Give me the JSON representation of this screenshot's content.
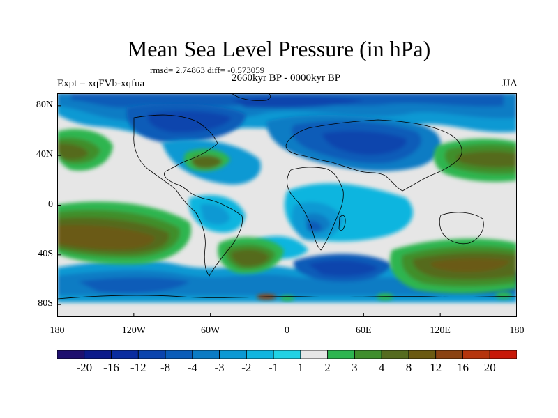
{
  "header": {
    "title": "Mean Sea Level Pressure (in hPa)",
    "stats": "rmsd= 2.74863  diff= -0.573059",
    "subtitle": "2660kyr BP - 0000kyr BP",
    "experiment": "Expt = xqFVb-xqfua",
    "season": "JJA"
  },
  "chart_data": {
    "type": "heatmap",
    "title": "Mean Sea Level Pressure (in hPa)",
    "xlabel": "",
    "ylabel": "",
    "xlim": [
      -180,
      180
    ],
    "ylim": [
      -90,
      90
    ],
    "x_ticks": [
      {
        "value": -180,
        "label": "180"
      },
      {
        "value": -120,
        "label": "120W"
      },
      {
        "value": -60,
        "label": "60W"
      },
      {
        "value": 0,
        "label": "0"
      },
      {
        "value": 60,
        "label": "60E"
      },
      {
        "value": 120,
        "label": "120E"
      },
      {
        "value": 180,
        "label": "180"
      }
    ],
    "y_ticks": [
      {
        "value": 80,
        "label": "80N"
      },
      {
        "value": 40,
        "label": "40N"
      },
      {
        "value": 0,
        "label": "0"
      },
      {
        "value": -40,
        "label": "40S"
      },
      {
        "value": -80,
        "label": "80S"
      }
    ],
    "colorbar": {
      "labels": [
        "-20",
        "-16",
        "-12",
        "-8",
        "-4",
        "-3",
        "-2",
        "-1",
        "1",
        "2",
        "3",
        "4",
        "8",
        "12",
        "16",
        "20"
      ],
      "colors": [
        "#1e0f6e",
        "#0b1a8a",
        "#0a2c9f",
        "#0b44ad",
        "#0a5cb8",
        "#0b7bc4",
        "#0b99d3",
        "#10b5df",
        "#21d2e4",
        "#e6e6e6",
        "#2db550",
        "#3f8e2c",
        "#556b1f",
        "#6b5a12",
        "#8a4212",
        "#b5350d",
        "#c81808"
      ]
    },
    "anomaly_regions": [
      {
        "lon": -165,
        "lat": 44,
        "value": 4
      },
      {
        "lon": -58,
        "lat": 38,
        "value": 4
      },
      {
        "lon": 152,
        "lat": 44,
        "value": 4
      },
      {
        "lon": -148,
        "lat": -40,
        "value": 8
      },
      {
        "lon": -28,
        "lat": -47,
        "value": 8
      },
      {
        "lon": 125,
        "lat": -50,
        "value": 8
      },
      {
        "lon": 48,
        "lat": 48,
        "value": -8
      },
      {
        "lon": -100,
        "lat": 70,
        "value": -8
      },
      {
        "lon": -95,
        "lat": -65,
        "value": -8
      },
      {
        "lon": 40,
        "lat": -55,
        "value": -8
      },
      {
        "lon": 25,
        "lat": -20,
        "value": -4
      },
      {
        "lon": -80,
        "lat": 30,
        "value": -3
      },
      {
        "lon": -50,
        "lat": 0,
        "value": -2
      },
      {
        "lon": 40,
        "lat": -5,
        "value": -2
      }
    ]
  }
}
